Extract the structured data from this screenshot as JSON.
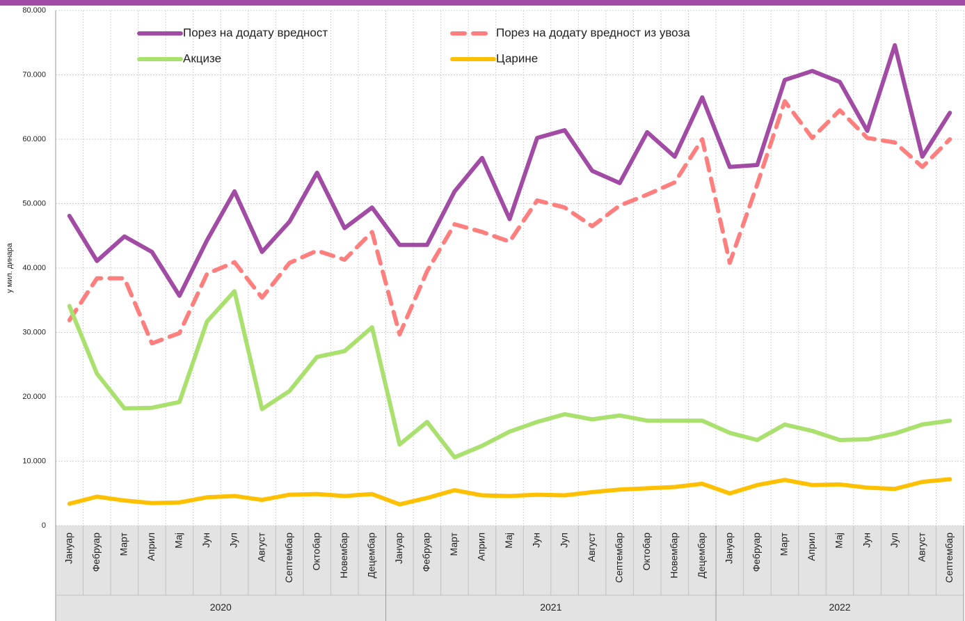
{
  "chart_data": {
    "type": "line",
    "ylabel": "у мил. динара",
    "category_groups": [
      {
        "label": "2020",
        "categories": [
          "Јануар",
          "Фебруар",
          "Март",
          "Април",
          "Мај",
          "Јун",
          "Јул",
          "Август",
          "Септембар",
          "Октобар",
          "Новембар",
          "Децембар"
        ]
      },
      {
        "label": "2021",
        "categories": [
          "Јануар",
          "Фебруар",
          "Март",
          "Април",
          "Мај",
          "Јун",
          "Јул",
          "Август",
          "Септембар",
          "Октобар",
          "Новембар",
          "Децембар"
        ]
      },
      {
        "label": "2022",
        "categories": [
          "Јануар",
          "Фебруар",
          "Март",
          "Април",
          "Мај",
          "Јун",
          "Јул",
          "Август",
          "Септембар"
        ]
      }
    ],
    "series": [
      {
        "name": "Порез на додату вредност",
        "color": "#a24ba4",
        "dashed": false,
        "values": [
          48100,
          41100,
          44900,
          42500,
          35700,
          44300,
          51900,
          42500,
          47200,
          54800,
          46200,
          49400,
          43600,
          43600,
          51900,
          57100,
          47600,
          60200,
          61400,
          55100,
          53200,
          61100,
          57300,
          66500,
          55700,
          56000,
          69200,
          70600,
          68900,
          61300,
          74600,
          57300,
          64100
        ]
      },
      {
        "name": "Порез на додату вредност из увоза",
        "color": "#ff7f7f",
        "dashed": true,
        "values": [
          31900,
          38400,
          38400,
          28300,
          29900,
          39100,
          40900,
          35400,
          40800,
          42700,
          41300,
          45600,
          29700,
          39500,
          46800,
          45600,
          44100,
          50500,
          49400,
          46500,
          49700,
          51400,
          53300,
          60000,
          40800,
          53000,
          65900,
          60200,
          64500,
          60200,
          59500,
          55700,
          60000
        ]
      },
      {
        "name": "Акцизе",
        "color": "#a9e06e",
        "dashed": false,
        "values": [
          34100,
          23600,
          18200,
          18300,
          19200,
          31700,
          36400,
          18100,
          20900,
          26200,
          27100,
          30800,
          12600,
          16100,
          10600,
          12400,
          14600,
          16100,
          17300,
          16500,
          17100,
          16300,
          16300,
          16300,
          14400,
          13300,
          15700,
          14700,
          13300,
          13400,
          14300,
          15700,
          16300
        ]
      },
      {
        "name": "Царине",
        "color": "#ffc000",
        "dashed": false,
        "values": [
          3400,
          4500,
          3900,
          3500,
          3600,
          4400,
          4600,
          4000,
          4800,
          4900,
          4600,
          4900,
          3300,
          4300,
          5500,
          4700,
          4600,
          4800,
          4700,
          5200,
          5600,
          5800,
          6000,
          6500,
          5000,
          6300,
          7100,
          6300,
          6400,
          5900,
          5700,
          6800,
          7200
        ]
      }
    ],
    "ylim": [
      0,
      80000
    ],
    "yticks": [
      {
        "value": 0,
        "label": "0"
      },
      {
        "value": 10000,
        "label": "10.000"
      },
      {
        "value": 20000,
        "label": "20.000"
      },
      {
        "value": 30000,
        "label": "30.000"
      },
      {
        "value": 40000,
        "label": "40.000"
      },
      {
        "value": 50000,
        "label": "50.000"
      },
      {
        "value": 60000,
        "label": "60.000"
      },
      {
        "value": 70000,
        "label": "70.000"
      },
      {
        "value": 80000,
        "label": "80.000"
      }
    ],
    "grid": true
  }
}
